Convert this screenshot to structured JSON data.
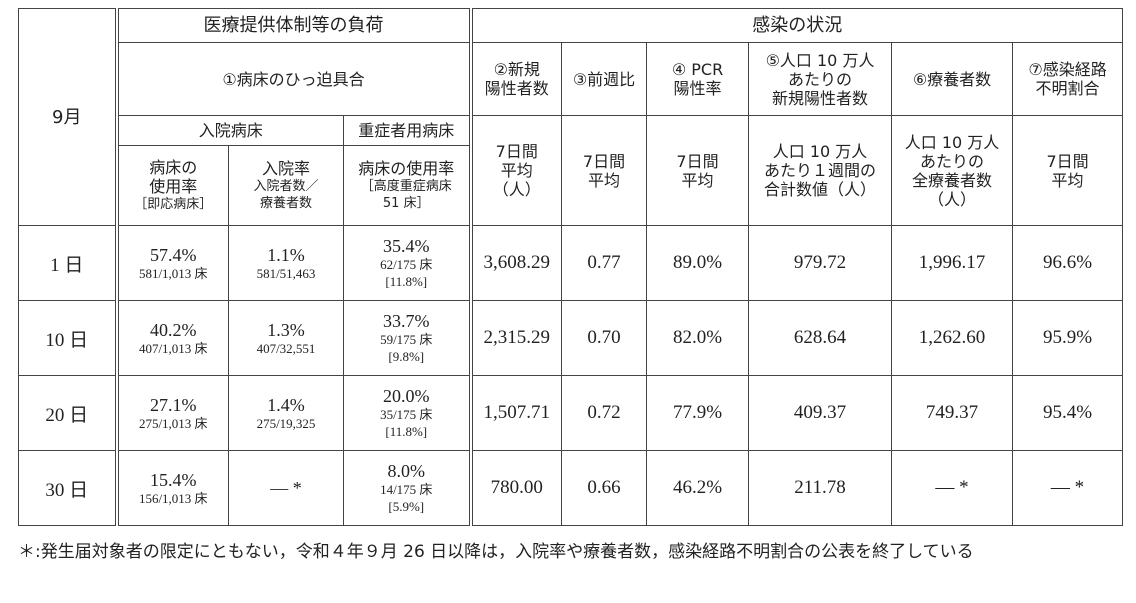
{
  "table": {
    "corner": "9月",
    "groups": [
      "医療提供体制等の負荷",
      "感染の状況"
    ],
    "bed_pressure": "①病床のひっ迫具合",
    "indicators": [
      "②新規\n陽性者数",
      "③前週比",
      "④ PCR\n陽性率",
      "⑤人口 10 万人\nあたりの\n新規陽性者数",
      "⑥療養者数",
      "⑦感染経路\n不明割合"
    ],
    "bed_types": [
      "入院病床",
      "重症者用病床"
    ],
    "subheaders": [
      {
        "title": "病床の\n使用率",
        "note": "［即応病床］"
      },
      {
        "title": "入院率",
        "note": "入院者数／\n療養者数"
      },
      {
        "title": "病床の使用率",
        "note": "［高度重症病床\n51 床］"
      }
    ],
    "units": [
      "7日間\n平均\n（人）",
      "7日間\n平均",
      "7日間\n平均",
      "人口 10 万人\nあたり１週間の\n合計数値（人）",
      "人口 10 万人\nあたりの\n全療養者数\n（人）",
      "7日間\n平均"
    ],
    "rows": [
      {
        "day": "1 日",
        "beds": [
          {
            "rate": "57.4%",
            "detail": "581/1,013 床"
          },
          {
            "rate": "1.1%",
            "detail": "581/51,463"
          },
          {
            "rate": "35.4%",
            "detail": "62/175 床",
            "extra": "[11.8%]"
          }
        ],
        "values": [
          "3,608.29",
          "0.77",
          "89.0%",
          "979.72",
          "1,996.17",
          "96.6%"
        ]
      },
      {
        "day": "10 日",
        "beds": [
          {
            "rate": "40.2%",
            "detail": "407/1,013 床"
          },
          {
            "rate": "1.3%",
            "detail": "407/32,551"
          },
          {
            "rate": "33.7%",
            "detail": "59/175 床",
            "extra": "[9.8%]"
          }
        ],
        "values": [
          "2,315.29",
          "0.70",
          "82.0%",
          "628.64",
          "1,262.60",
          "95.9%"
        ]
      },
      {
        "day": "20 日",
        "beds": [
          {
            "rate": "27.1%",
            "detail": "275/1,013 床"
          },
          {
            "rate": "1.4%",
            "detail": "275/19,325"
          },
          {
            "rate": "20.0%",
            "detail": "35/175 床",
            "extra": "[11.8%]"
          }
        ],
        "values": [
          "1,507.71",
          "0.72",
          "77.9%",
          "409.37",
          "749.37",
          "95.4%"
        ]
      },
      {
        "day": "30 日",
        "beds": [
          {
            "rate": "15.4%",
            "detail": "156/1,013 床"
          },
          {
            "rate": "— *"
          },
          {
            "rate": "8.0%",
            "detail": "14/175 床",
            "extra": "[5.9%]"
          }
        ],
        "values": [
          "780.00",
          "0.66",
          "46.2%",
          "211.78",
          "— *",
          "— *"
        ]
      }
    ]
  },
  "footnote": {
    "marker": "＊:",
    "text": "発生届対象者の限定にともない，令和４年９月 26 日以降は，入院率や療養者数，感染経路不明割合の公表を終了している"
  }
}
